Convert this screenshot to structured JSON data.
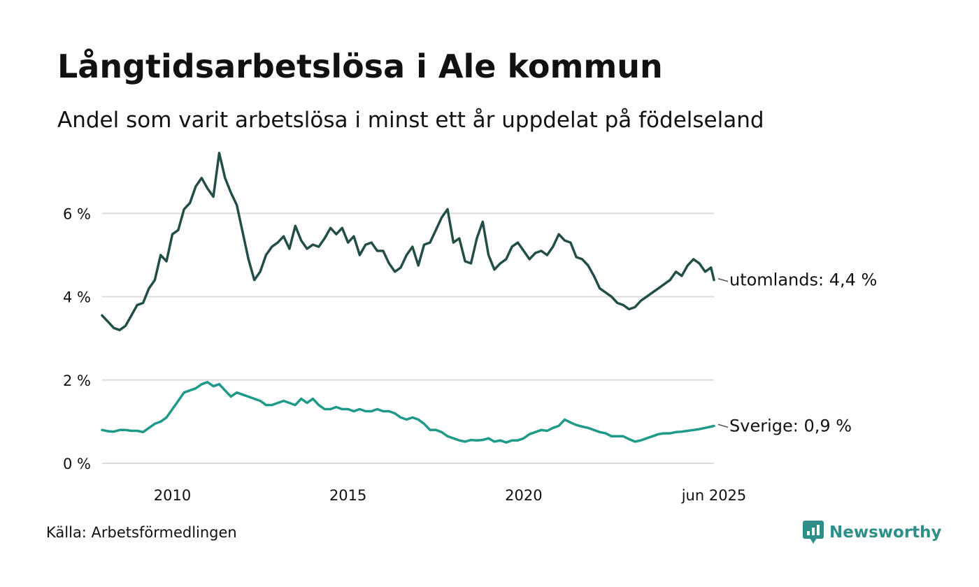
{
  "header": {
    "title": "Långtidsarbetslösa i Ale kommun",
    "subtitle": "Andel som varit arbetslösa i minst ett år uppdelat på födelseland"
  },
  "footer": {
    "source": "Källa: Arbetsförmedlingen",
    "brand": "Newsworthy",
    "brand_icon": "bar-chart-speech-bubble-icon"
  },
  "chart_data": {
    "type": "line",
    "x_range": [
      "2008-01",
      "2025-06"
    ],
    "ylim": [
      0,
      7.6
    ],
    "grid": true,
    "y_ticks": [
      {
        "value": 0,
        "label": "0 %"
      },
      {
        "value": 2,
        "label": "2 %"
      },
      {
        "value": 4,
        "label": "4 %"
      },
      {
        "value": 6,
        "label": "6 %"
      }
    ],
    "x_ticks": [
      {
        "date": "2010-01",
        "label": "2010"
      },
      {
        "date": "2015-01",
        "label": "2015"
      },
      {
        "date": "2020-01",
        "label": "2020"
      },
      {
        "date": "2025-06",
        "label": "jun 2025"
      }
    ],
    "series": [
      {
        "name": "utomlands",
        "end_label": "utomlands: 4,4 %",
        "color": "#234e48",
        "points": [
          [
            "2008-01",
            3.55
          ],
          [
            "2008-03",
            3.4
          ],
          [
            "2008-05",
            3.25
          ],
          [
            "2008-07",
            3.2
          ],
          [
            "2008-09",
            3.3
          ],
          [
            "2008-11",
            3.55
          ],
          [
            "2009-01",
            3.8
          ],
          [
            "2009-03",
            3.85
          ],
          [
            "2009-05",
            4.2
          ],
          [
            "2009-07",
            4.4
          ],
          [
            "2009-09",
            5.0
          ],
          [
            "2009-11",
            4.85
          ],
          [
            "2010-01",
            5.5
          ],
          [
            "2010-03",
            5.6
          ],
          [
            "2010-05",
            6.1
          ],
          [
            "2010-07",
            6.25
          ],
          [
            "2010-09",
            6.65
          ],
          [
            "2010-11",
            6.85
          ],
          [
            "2011-01",
            6.6
          ],
          [
            "2011-03",
            6.4
          ],
          [
            "2011-05",
            7.45
          ],
          [
            "2011-07",
            6.85
          ],
          [
            "2011-09",
            6.5
          ],
          [
            "2011-11",
            6.2
          ],
          [
            "2012-01",
            5.55
          ],
          [
            "2012-03",
            4.9
          ],
          [
            "2012-05",
            4.4
          ],
          [
            "2012-07",
            4.6
          ],
          [
            "2012-09",
            5.0
          ],
          [
            "2012-11",
            5.2
          ],
          [
            "2013-01",
            5.3
          ],
          [
            "2013-03",
            5.45
          ],
          [
            "2013-05",
            5.15
          ],
          [
            "2013-07",
            5.7
          ],
          [
            "2013-09",
            5.35
          ],
          [
            "2013-11",
            5.15
          ],
          [
            "2014-01",
            5.25
          ],
          [
            "2014-03",
            5.2
          ],
          [
            "2014-05",
            5.4
          ],
          [
            "2014-07",
            5.65
          ],
          [
            "2014-09",
            5.5
          ],
          [
            "2014-11",
            5.65
          ],
          [
            "2015-01",
            5.3
          ],
          [
            "2015-03",
            5.45
          ],
          [
            "2015-05",
            5.0
          ],
          [
            "2015-07",
            5.25
          ],
          [
            "2015-09",
            5.3
          ],
          [
            "2015-11",
            5.1
          ],
          [
            "2016-01",
            5.1
          ],
          [
            "2016-03",
            4.8
          ],
          [
            "2016-05",
            4.6
          ],
          [
            "2016-07",
            4.7
          ],
          [
            "2016-09",
            5.0
          ],
          [
            "2016-11",
            5.2
          ],
          [
            "2017-01",
            4.75
          ],
          [
            "2017-03",
            5.25
          ],
          [
            "2017-05",
            5.3
          ],
          [
            "2017-07",
            5.6
          ],
          [
            "2017-09",
            5.9
          ],
          [
            "2017-11",
            6.1
          ],
          [
            "2018-01",
            5.3
          ],
          [
            "2018-03",
            5.4
          ],
          [
            "2018-05",
            4.85
          ],
          [
            "2018-07",
            4.8
          ],
          [
            "2018-09",
            5.4
          ],
          [
            "2018-11",
            5.8
          ],
          [
            "2019-01",
            5.0
          ],
          [
            "2019-03",
            4.65
          ],
          [
            "2019-05",
            4.8
          ],
          [
            "2019-07",
            4.9
          ],
          [
            "2019-09",
            5.2
          ],
          [
            "2019-11",
            5.3
          ],
          [
            "2020-01",
            5.1
          ],
          [
            "2020-03",
            4.9
          ],
          [
            "2020-05",
            5.05
          ],
          [
            "2020-07",
            5.1
          ],
          [
            "2020-09",
            5.0
          ],
          [
            "2020-11",
            5.2
          ],
          [
            "2021-01",
            5.5
          ],
          [
            "2021-03",
            5.35
          ],
          [
            "2021-05",
            5.3
          ],
          [
            "2021-07",
            4.95
          ],
          [
            "2021-09",
            4.9
          ],
          [
            "2021-11",
            4.75
          ],
          [
            "2022-01",
            4.5
          ],
          [
            "2022-03",
            4.2
          ],
          [
            "2022-05",
            4.1
          ],
          [
            "2022-07",
            4.0
          ],
          [
            "2022-09",
            3.85
          ],
          [
            "2022-11",
            3.8
          ],
          [
            "2023-01",
            3.7
          ],
          [
            "2023-03",
            3.75
          ],
          [
            "2023-05",
            3.9
          ],
          [
            "2023-07",
            4.0
          ],
          [
            "2023-09",
            4.1
          ],
          [
            "2023-11",
            4.2
          ],
          [
            "2024-01",
            4.3
          ],
          [
            "2024-03",
            4.4
          ],
          [
            "2024-05",
            4.6
          ],
          [
            "2024-07",
            4.5
          ],
          [
            "2024-09",
            4.75
          ],
          [
            "2024-11",
            4.9
          ],
          [
            "2025-01",
            4.8
          ],
          [
            "2025-03",
            4.6
          ],
          [
            "2025-05",
            4.7
          ],
          [
            "2025-06",
            4.4
          ]
        ]
      },
      {
        "name": "Sverige",
        "end_label": "Sverige: 0,9 %",
        "color": "#1f9a88",
        "points": [
          [
            "2008-01",
            0.8
          ],
          [
            "2008-03",
            0.77
          ],
          [
            "2008-05",
            0.76
          ],
          [
            "2008-07",
            0.8
          ],
          [
            "2008-09",
            0.8
          ],
          [
            "2008-11",
            0.78
          ],
          [
            "2009-01",
            0.78
          ],
          [
            "2009-03",
            0.75
          ],
          [
            "2009-05",
            0.85
          ],
          [
            "2009-07",
            0.95
          ],
          [
            "2009-09",
            1.0
          ],
          [
            "2009-11",
            1.1
          ],
          [
            "2010-01",
            1.3
          ],
          [
            "2010-03",
            1.5
          ],
          [
            "2010-05",
            1.7
          ],
          [
            "2010-07",
            1.75
          ],
          [
            "2010-09",
            1.8
          ],
          [
            "2010-11",
            1.9
          ],
          [
            "2011-01",
            1.95
          ],
          [
            "2011-03",
            1.85
          ],
          [
            "2011-05",
            1.9
          ],
          [
            "2011-07",
            1.75
          ],
          [
            "2011-09",
            1.6
          ],
          [
            "2011-11",
            1.7
          ],
          [
            "2012-01",
            1.65
          ],
          [
            "2012-03",
            1.6
          ],
          [
            "2012-05",
            1.55
          ],
          [
            "2012-07",
            1.5
          ],
          [
            "2012-09",
            1.4
          ],
          [
            "2012-11",
            1.4
          ],
          [
            "2013-01",
            1.45
          ],
          [
            "2013-03",
            1.5
          ],
          [
            "2013-05",
            1.45
          ],
          [
            "2013-07",
            1.4
          ],
          [
            "2013-09",
            1.55
          ],
          [
            "2013-11",
            1.45
          ],
          [
            "2014-01",
            1.55
          ],
          [
            "2014-03",
            1.4
          ],
          [
            "2014-05",
            1.3
          ],
          [
            "2014-07",
            1.3
          ],
          [
            "2014-09",
            1.35
          ],
          [
            "2014-11",
            1.3
          ],
          [
            "2015-01",
            1.3
          ],
          [
            "2015-03",
            1.25
          ],
          [
            "2015-05",
            1.3
          ],
          [
            "2015-07",
            1.25
          ],
          [
            "2015-09",
            1.25
          ],
          [
            "2015-11",
            1.3
          ],
          [
            "2016-01",
            1.25
          ],
          [
            "2016-03",
            1.25
          ],
          [
            "2016-05",
            1.2
          ],
          [
            "2016-07",
            1.1
          ],
          [
            "2016-09",
            1.05
          ],
          [
            "2016-11",
            1.1
          ],
          [
            "2017-01",
            1.05
          ],
          [
            "2017-03",
            0.95
          ],
          [
            "2017-05",
            0.8
          ],
          [
            "2017-07",
            0.8
          ],
          [
            "2017-09",
            0.75
          ],
          [
            "2017-11",
            0.65
          ],
          [
            "2018-01",
            0.6
          ],
          [
            "2018-03",
            0.55
          ],
          [
            "2018-05",
            0.52
          ],
          [
            "2018-07",
            0.56
          ],
          [
            "2018-09",
            0.55
          ],
          [
            "2018-11",
            0.56
          ],
          [
            "2019-01",
            0.6
          ],
          [
            "2019-03",
            0.52
          ],
          [
            "2019-05",
            0.55
          ],
          [
            "2019-07",
            0.5
          ],
          [
            "2019-09",
            0.55
          ],
          [
            "2019-11",
            0.55
          ],
          [
            "2020-01",
            0.6
          ],
          [
            "2020-03",
            0.7
          ],
          [
            "2020-05",
            0.75
          ],
          [
            "2020-07",
            0.8
          ],
          [
            "2020-09",
            0.78
          ],
          [
            "2020-11",
            0.85
          ],
          [
            "2021-01",
            0.9
          ],
          [
            "2021-03",
            1.05
          ],
          [
            "2021-05",
            0.98
          ],
          [
            "2021-07",
            0.92
          ],
          [
            "2021-09",
            0.88
          ],
          [
            "2021-11",
            0.85
          ],
          [
            "2022-01",
            0.8
          ],
          [
            "2022-03",
            0.75
          ],
          [
            "2022-05",
            0.72
          ],
          [
            "2022-07",
            0.65
          ],
          [
            "2022-09",
            0.65
          ],
          [
            "2022-11",
            0.65
          ],
          [
            "2023-01",
            0.58
          ],
          [
            "2023-03",
            0.52
          ],
          [
            "2023-05",
            0.55
          ],
          [
            "2023-07",
            0.6
          ],
          [
            "2023-09",
            0.65
          ],
          [
            "2023-11",
            0.7
          ],
          [
            "2024-01",
            0.72
          ],
          [
            "2024-03",
            0.72
          ],
          [
            "2024-05",
            0.75
          ],
          [
            "2024-07",
            0.76
          ],
          [
            "2024-09",
            0.78
          ],
          [
            "2024-11",
            0.8
          ],
          [
            "2025-01",
            0.82
          ],
          [
            "2025-03",
            0.85
          ],
          [
            "2025-05",
            0.88
          ],
          [
            "2025-06",
            0.9
          ]
        ]
      }
    ]
  }
}
